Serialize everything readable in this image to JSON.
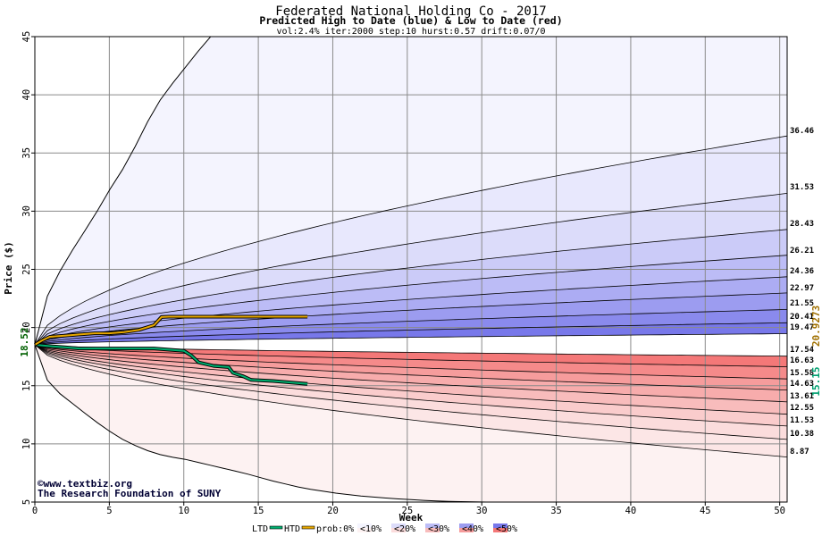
{
  "chart_data": {
    "type": "area",
    "title": "Federated National Holding Co - 2017",
    "subtitle": "Predicted High to Date (blue) &  Low to Date (red)",
    "params": "vol:2.4% iter:2000 step:10 hurst:0.57 drift:0.07/0",
    "xlabel": "Week",
    "ylabel": "Price ($)",
    "xlim": [
      0,
      50.5
    ],
    "ylim": [
      5,
      45
    ],
    "xticks": [
      0,
      5,
      10,
      15,
      20,
      25,
      30,
      35,
      40,
      45,
      50
    ],
    "yticks": [
      5,
      10,
      15,
      20,
      25,
      30,
      35,
      40,
      45
    ],
    "grid": true,
    "start_price": 18.52,
    "start_price_label": "18.52",
    "current_high_label": "20.9273",
    "current_low_label": "15.15",
    "upper_band_ends": [
      36.46,
      31.53,
      28.43,
      26.21,
      24.36,
      22.97,
      21.55,
      20.41,
      19.47
    ],
    "upper_band_labels": [
      "36.46",
      "31.53",
      "28.43",
      "26.21",
      "24.36",
      "22.97",
      "21.55",
      "20.41",
      "19.47"
    ],
    "lower_band_ends": [
      17.54,
      16.63,
      15.58,
      14.63,
      13.61,
      12.55,
      11.53,
      10.38,
      8.87
    ],
    "lower_band_labels": [
      "17.54",
      "16.63",
      "15.58",
      "14.63",
      "13.61",
      "12.55",
      "11.53",
      "10.38",
      "8.87"
    ],
    "upper_outer_curve": [
      [
        0,
        18.52
      ],
      [
        0.5,
        21.6
      ],
      [
        1,
        23.2
      ],
      [
        2,
        25.6
      ],
      [
        3,
        27.6
      ],
      [
        4,
        29.6
      ],
      [
        5,
        31.8
      ],
      [
        6,
        33.8
      ],
      [
        7,
        36.2
      ],
      [
        8,
        38.8
      ],
      [
        9,
        40.6
      ],
      [
        10,
        42.2
      ],
      [
        11,
        43.8
      ],
      [
        12,
        45.3
      ]
    ],
    "lower_outer_curve": [
      [
        0,
        18.52
      ],
      [
        0.5,
        16.5
      ],
      [
        1,
        15.0
      ],
      [
        2,
        14.0
      ],
      [
        3,
        13.0
      ],
      [
        4,
        12.0
      ],
      [
        5,
        11.1
      ],
      [
        6,
        10.3
      ],
      [
        7,
        9.7
      ],
      [
        8,
        9.2
      ],
      [
        9,
        8.9
      ],
      [
        10,
        8.7
      ],
      [
        12,
        8.1
      ],
      [
        14,
        7.5
      ],
      [
        16,
        6.8
      ],
      [
        18,
        6.2
      ],
      [
        20,
        5.8
      ],
      [
        22,
        5.5
      ],
      [
        24,
        5.3
      ],
      [
        26,
        5.15
      ],
      [
        28,
        5.05
      ],
      [
        30,
        5.0
      ],
      [
        50.5,
        5.0
      ]
    ],
    "htd_series": {
      "name": "HTD",
      "color": "#e8a800",
      "points": [
        [
          0,
          18.52
        ],
        [
          0.5,
          18.9
        ],
        [
          1,
          19.2
        ],
        [
          2,
          19.3
        ],
        [
          3,
          19.4
        ],
        [
          4,
          19.5
        ],
        [
          5,
          19.5
        ],
        [
          6,
          19.6
        ],
        [
          7,
          19.8
        ],
        [
          8,
          20.2
        ],
        [
          8.5,
          20.9
        ],
        [
          9,
          20.93
        ],
        [
          12,
          20.93
        ],
        [
          15,
          20.93
        ],
        [
          18.3,
          20.93
        ]
      ]
    },
    "ltd_series": {
      "name": "LTD",
      "color": "#00b070",
      "points": [
        [
          0,
          18.52
        ],
        [
          1,
          18.4
        ],
        [
          2,
          18.3
        ],
        [
          3,
          18.2
        ],
        [
          5,
          18.2
        ],
        [
          8,
          18.2
        ],
        [
          10,
          18.0
        ],
        [
          10.5,
          17.6
        ],
        [
          11,
          17.0
        ],
        [
          12,
          16.7
        ],
        [
          13,
          16.6
        ],
        [
          13.3,
          16.1
        ],
        [
          14,
          15.8
        ],
        [
          14.5,
          15.5
        ],
        [
          16,
          15.4
        ],
        [
          18.3,
          15.15
        ]
      ]
    },
    "legend": {
      "ltd_label": "LTD",
      "htd_label": "HTD",
      "prob_label": "prob:0%",
      "bins": [
        "<10%",
        "<20%",
        "<30%",
        "<40%",
        "<50%"
      ],
      "upper_colors": [
        "#f4f4fe",
        "#dcdcfa",
        "#bcbcf6",
        "#9c9cf0",
        "#7878ea"
      ],
      "lower_colors": [
        "#fdf2f2",
        "#fbdcdc",
        "#f8bcbc",
        "#f69c9c",
        "#f47878"
      ]
    },
    "legend_position": "bottom"
  },
  "credit": {
    "line1": "©www.textbiz.org",
    "line2": "The Research Foundation of SUNY"
  }
}
